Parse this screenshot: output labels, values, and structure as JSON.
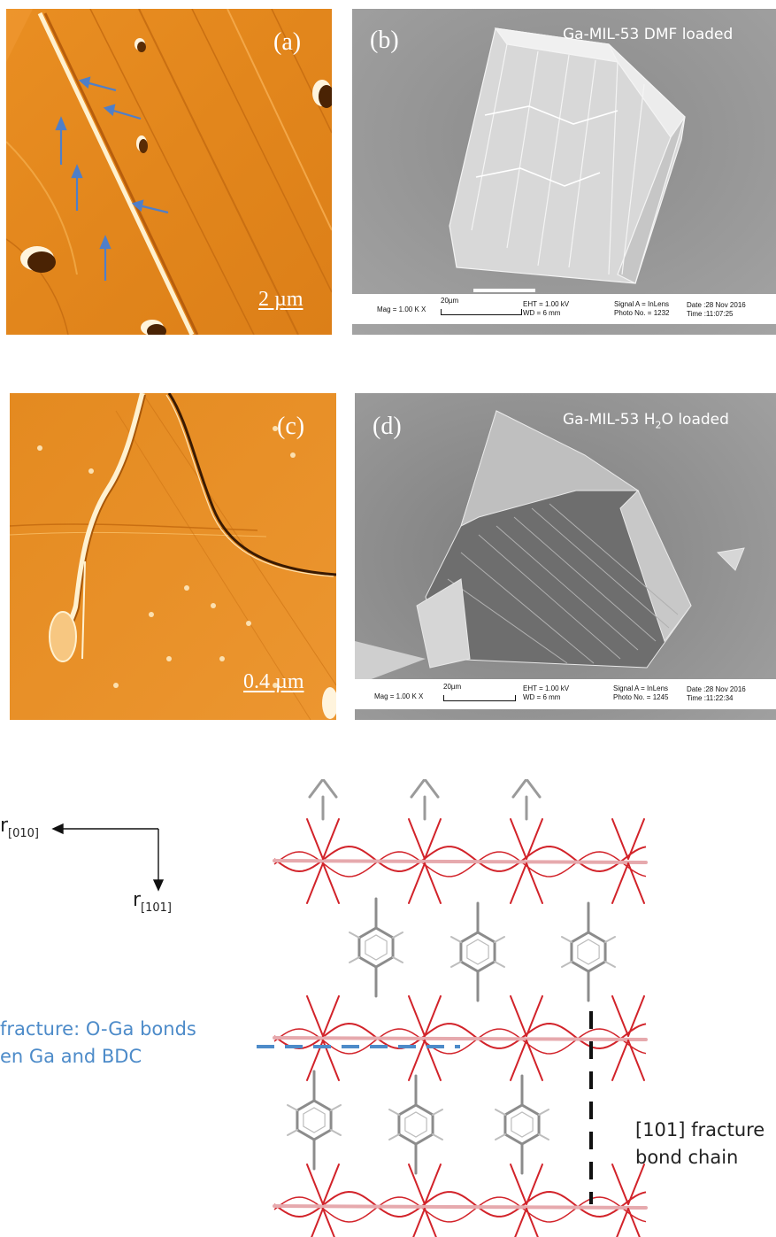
{
  "panels": {
    "a": {
      "label": "(a)",
      "scale_bar": "2 µm"
    },
    "b": {
      "label": "(b)",
      "title": "Ga-MIL-53 DMF loaded",
      "info": {
        "mag": "Mag =  1.00 K X",
        "bar": "20µm",
        "eht": "EHT =  1.00 kV",
        "wd": "WD =   6 mm",
        "signal": "Signal A = InLens",
        "photo": "Photo No. = 1232",
        "date": "Date :28 Nov 2016",
        "time": "Time :11:07:25"
      }
    },
    "c": {
      "label": "(c)",
      "scale_bar": "0.4 µm"
    },
    "d": {
      "label": "(d)",
      "title_prefix": "Ga-MIL-53 H",
      "title_sub": "2",
      "title_suffix": "O loaded",
      "info": {
        "mag": "Mag =  1.00 K X",
        "bar": "20µm",
        "eht": "EHT =  1.00 kV",
        "wd": "WD =   6 mm",
        "signal": "Signal A = InLens",
        "photo": "Photo No. = 1245",
        "date": "Date :28 Nov 2016",
        "time": "Time :11:22:34"
      }
    }
  },
  "structure": {
    "axis_010": {
      "base": "r",
      "sub": "[010]"
    },
    "axis_101": {
      "base": "r",
      "sub": "[101]"
    },
    "blue_annotation": [
      "fracture: O-Ga bonds",
      "en Ga and BDC"
    ],
    "black_annotation": [
      "[101] fracture",
      "bond chain"
    ]
  },
  "colors": {
    "afm_orange": "#e58a1f",
    "sem_gray": "#9c9c9c",
    "arrow_blue": "#4f7fc9",
    "bond_red": "#d2232a",
    "ga_pink": "#e6a9ad",
    "carbon_gray": "#8c8c8c",
    "fracture_blue": "#4d8bc9"
  }
}
